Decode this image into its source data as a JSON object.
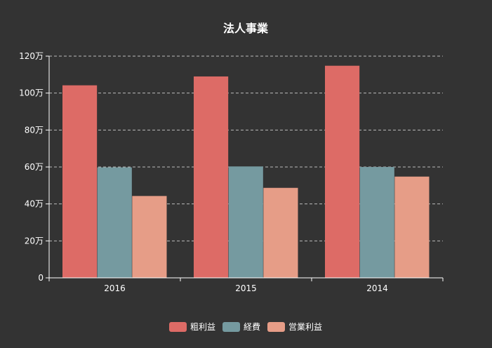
{
  "chart_data": {
    "type": "bar",
    "title": "法人事業",
    "categories": [
      "2016",
      "2015",
      "2014"
    ],
    "series": [
      {
        "name": "粗利益",
        "color": "#dd6b66",
        "values": [
          1042000,
          1090000,
          1148000
        ]
      },
      {
        "name": "経費",
        "color": "#759aa0",
        "values": [
          598000,
          603000,
          600000
        ]
      },
      {
        "name": "営業利益",
        "color": "#e69d87",
        "values": [
          443000,
          487000,
          548000
        ]
      }
    ],
    "y_ticks": [
      "0",
      "20万",
      "40万",
      "60万",
      "80万",
      "100万",
      "120万"
    ],
    "ylim": [
      0,
      1200000
    ],
    "grid": true,
    "legend_position": "bottom"
  }
}
